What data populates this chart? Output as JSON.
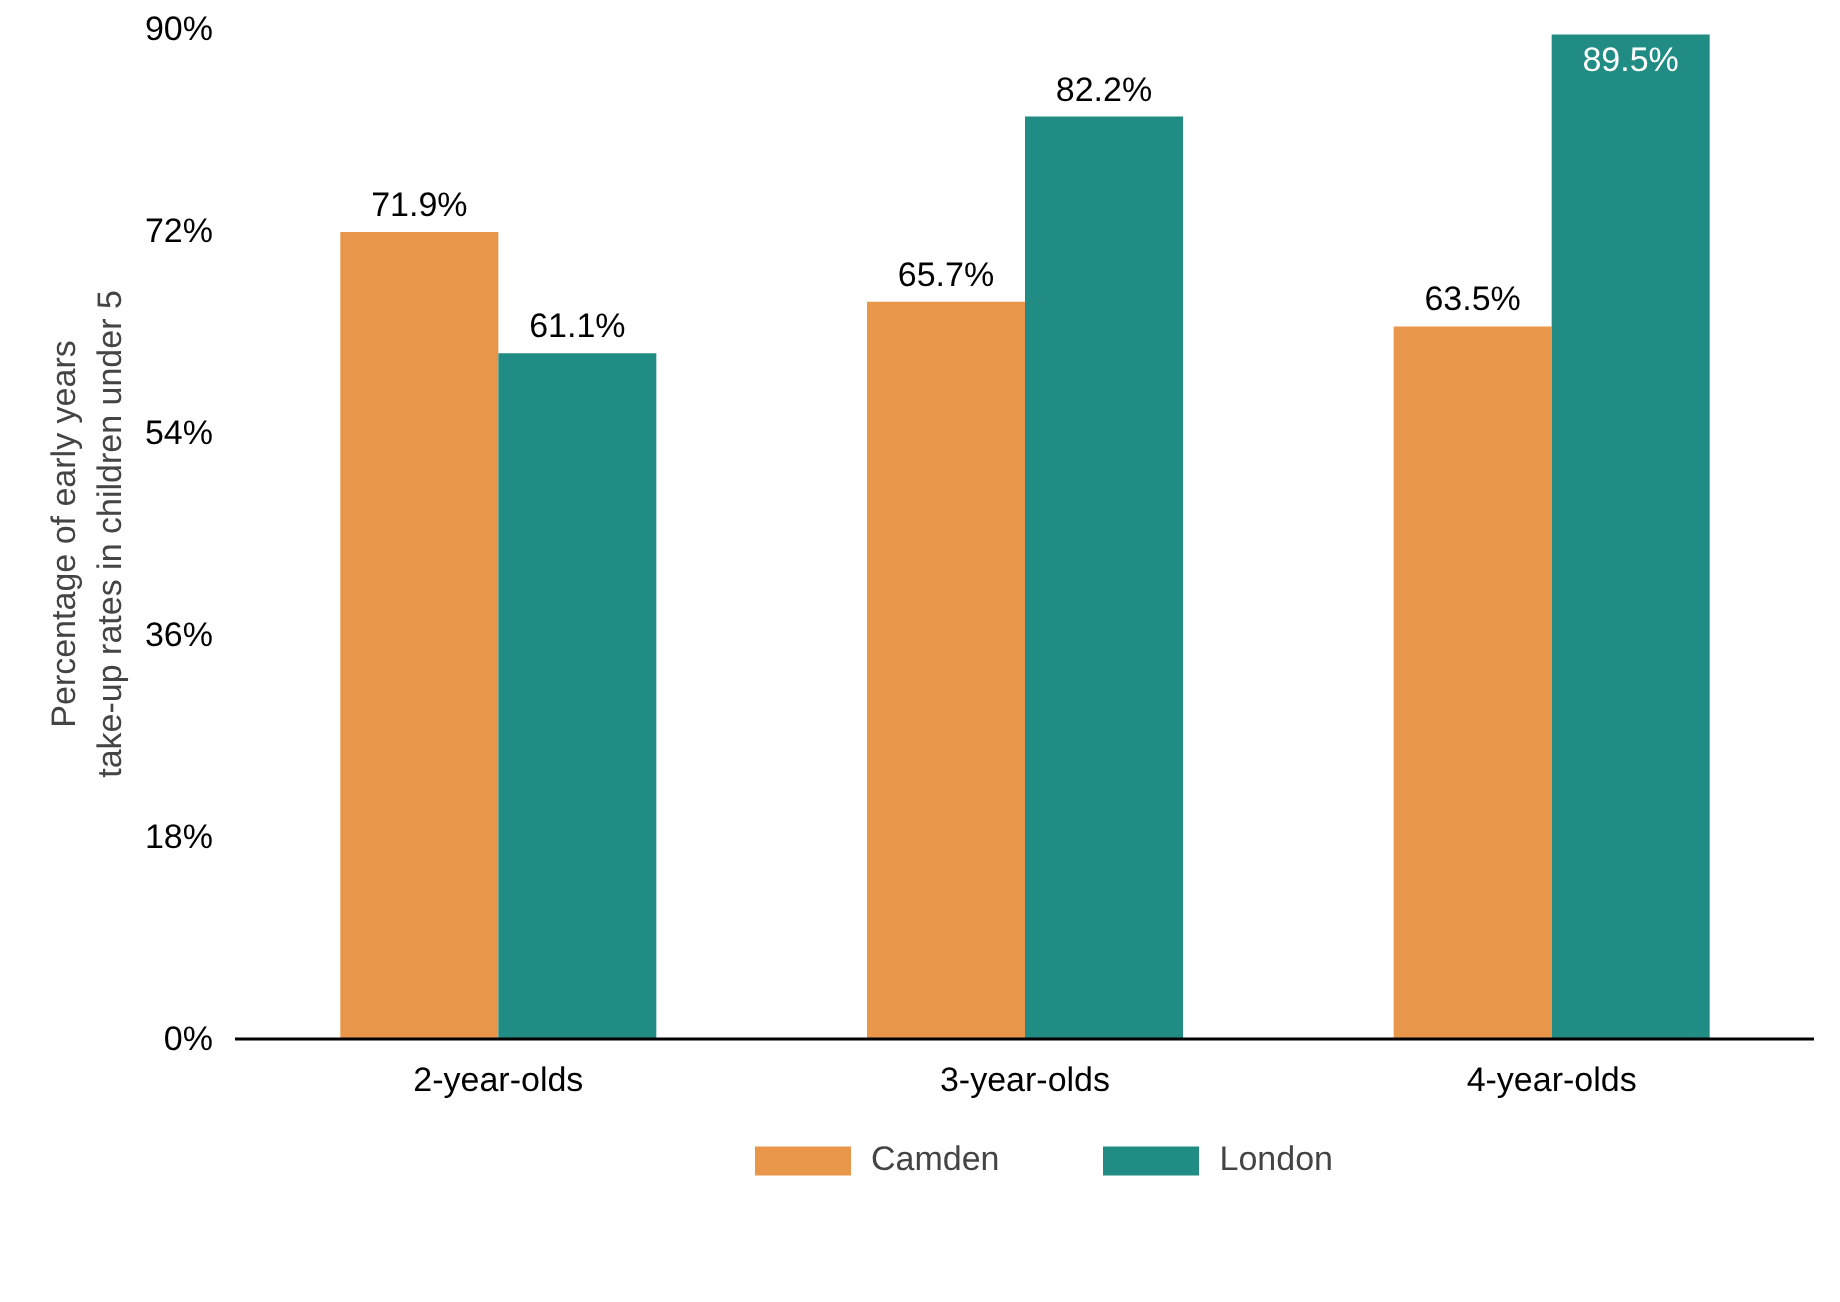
{
  "chart_data": {
    "type": "bar",
    "ylabel": "Percentage of early years take-up rates in children under 5",
    "categories": [
      "2-year-olds",
      "3-year-olds",
      "4-year-olds"
    ],
    "series": [
      {
        "name": "Camden",
        "color": "#e8964a",
        "values": [
          71.9,
          65.7,
          63.5
        ],
        "value_labels": [
          "71.9%",
          "65.7%",
          "63.5%"
        ]
      },
      {
        "name": "London",
        "color": "#218c83",
        "values": [
          61.1,
          82.2,
          89.5
        ],
        "value_labels": [
          "61.1%",
          "82.2%",
          "89.5%"
        ]
      }
    ],
    "ylim": [
      0,
      90
    ],
    "yticks": [
      {
        "value": 0,
        "label": "0%"
      },
      {
        "value": 18,
        "label": "18%"
      },
      {
        "value": 36,
        "label": "36%"
      },
      {
        "value": 54,
        "label": "54%"
      },
      {
        "value": 72,
        "label": "72%"
      },
      {
        "value": 90,
        "label": "90%"
      }
    ],
    "grid": false,
    "legend": "bottom"
  }
}
